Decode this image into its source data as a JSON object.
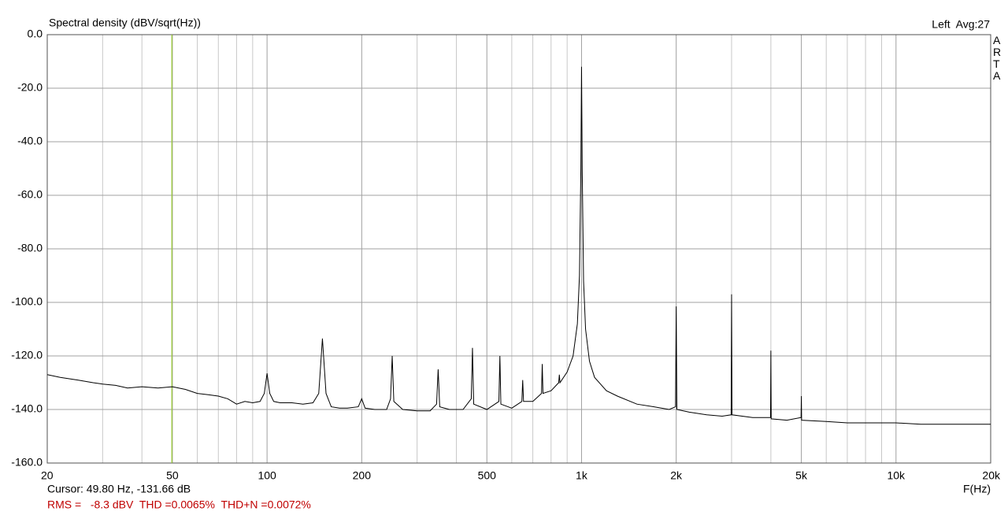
{
  "chart_data": {
    "type": "line",
    "title": "Spectral density (dBV/sqrt(Hz))",
    "channel_info": "Left  Avg:27",
    "watermark": "ARTA",
    "x_label": "F(Hz)",
    "cursor_text": "Cursor: 49.80 Hz, -131.66 dB",
    "summary": "RMS =   -8.3 dBV  THD =0.0065%  THD+N =0.0072%",
    "cursor": 49.8,
    "cursor_color": "#9acd32",
    "color": "#000000",
    "xlog": true,
    "grid": true,
    "xlim": [
      20,
      20000
    ],
    "ylim": [
      -160,
      0
    ],
    "yticks": [
      {
        "value": 0,
        "label": "0.0"
      },
      {
        "value": -20,
        "label": "-20.0"
      },
      {
        "value": -40,
        "label": "-40.0"
      },
      {
        "value": -60,
        "label": "-60.0"
      },
      {
        "value": -80,
        "label": "-80.0"
      },
      {
        "value": -100,
        "label": "-100.0"
      },
      {
        "value": -120,
        "label": "-120.0"
      },
      {
        "value": -140,
        "label": "-140.0"
      },
      {
        "value": -160,
        "label": "-160.0"
      }
    ],
    "xticks": [
      20,
      50,
      100,
      200,
      500,
      {
        "value": 1000,
        "label": "1k"
      },
      {
        "value": 2000,
        "label": "2k"
      },
      {
        "value": 5000,
        "label": "5k"
      },
      {
        "value": 10000,
        "label": "10k"
      },
      {
        "value": 20000,
        "label": "20k"
      }
    ],
    "xgrid_minor": [
      30,
      40,
      60,
      70,
      80,
      90,
      300,
      400,
      600,
      700,
      800,
      900,
      3000,
      4000,
      6000,
      7000,
      8000,
      9000
    ],
    "x": [
      20,
      22,
      25,
      28,
      30,
      33,
      36,
      40,
      45,
      50,
      55,
      60,
      65,
      70,
      75,
      80,
      85,
      90,
      95,
      98,
      100,
      102,
      105,
      110,
      120,
      130,
      140,
      146,
      150,
      154,
      160,
      170,
      180,
      195,
      200,
      205,
      220,
      240,
      247,
      250,
      253,
      270,
      300,
      330,
      346,
      350,
      354,
      380,
      420,
      446,
      450,
      454,
      500,
      546,
      550,
      554,
      600,
      646,
      650,
      654,
      700,
      746,
      750,
      754,
      800,
      846,
      850,
      854,
      900,
      940,
      970,
      985,
      995,
      1000,
      1005,
      1015,
      1030,
      1060,
      1100,
      1200,
      1300,
      1500,
      1700,
      1900,
      1990,
      2000,
      2010,
      2200,
      2500,
      2800,
      2990,
      3000,
      3010,
      3500,
      3990,
      4000,
      4010,
      4500,
      4990,
      5000,
      5010,
      6000,
      7000,
      8000,
      10000,
      12000,
      15000,
      20000
    ],
    "values": [
      -127,
      -128,
      -129,
      -130,
      -130.5,
      -131,
      -132,
      -131.5,
      -132,
      -131.5,
      -132.5,
      -134,
      -134.5,
      -135,
      -136,
      -138,
      -137,
      -137.5,
      -137,
      -134,
      -126.5,
      -134,
      -137,
      -137.5,
      -137.5,
      -138,
      -137.5,
      -134,
      -113.5,
      -134,
      -139,
      -139.5,
      -139.5,
      -139,
      -136,
      -139.5,
      -140,
      -140,
      -136,
      -120,
      -137,
      -140,
      -140.5,
      -140.5,
      -138,
      -125,
      -139,
      -140,
      -140,
      -136,
      -117,
      -138,
      -140,
      -137,
      -120,
      -138,
      -139.5,
      -137,
      -129,
      -137,
      -137,
      -134,
      -123,
      -134,
      -133,
      -130,
      -127,
      -130,
      -126,
      -120,
      -108,
      -90,
      -50,
      -12,
      -50,
      -92,
      -110,
      -122,
      -128,
      -133,
      -135,
      -138,
      -139,
      -140,
      -139,
      -101.5,
      -140,
      -141,
      -142,
      -142.5,
      -142,
      -97,
      -142,
      -143,
      -143,
      -118,
      -143.5,
      -144,
      -143,
      -135,
      -144,
      -144.5,
      -145,
      -145,
      -145,
      -145.5,
      -145.5,
      -145.5
    ]
  }
}
